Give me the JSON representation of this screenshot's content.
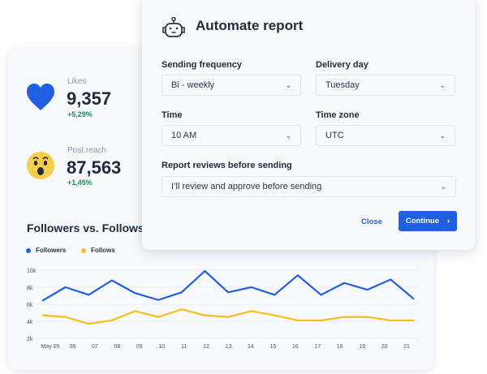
{
  "stats": [
    {
      "label": "Likes",
      "value": "9,357",
      "change": "+5,29%",
      "icon": "heart-icon"
    },
    {
      "label": "Post reach",
      "value": "87,563",
      "change": "+1,45%",
      "icon": "wow-emoji-icon"
    }
  ],
  "chart_data": {
    "type": "line",
    "title": "Followers vs. Follows",
    "categories": [
      "May 05",
      "06",
      "07",
      "08",
      "09",
      "10",
      "11",
      "12",
      "13",
      "14",
      "15",
      "16",
      "17",
      "18",
      "19",
      "20",
      "21"
    ],
    "series": [
      {
        "name": "Followers",
        "color": "#1f5fe0",
        "values": [
          6400,
          8000,
          7100,
          8800,
          7300,
          6500,
          7400,
          9900,
          7400,
          8000,
          7100,
          9400,
          7100,
          8500,
          7700,
          8900,
          6600
        ]
      },
      {
        "name": "Follows",
        "color": "#fbbd1e",
        "values": [
          4700,
          4500,
          3700,
          4100,
          5200,
          4500,
          5400,
          4700,
          4500,
          5200,
          4700,
          4100,
          4100,
          4500,
          4500,
          4100,
          4100
        ]
      }
    ],
    "yticks": [
      "10k",
      "8k",
      "6k",
      "4k",
      "2k"
    ],
    "ylim": [
      2000,
      10000
    ],
    "grid": true,
    "legend": "top-left"
  },
  "modal": {
    "title": "Automate report",
    "icon": "robot-icon",
    "fields": [
      {
        "label": "Sending frequency",
        "value": "Bi - weekly"
      },
      {
        "label": "Delivery day",
        "value": "Tuesday"
      },
      {
        "label": "Time",
        "value": "10 AM"
      },
      {
        "label": "Time zone",
        "value": "UTC"
      },
      {
        "label": "Report reviews before sending",
        "value": "I’ll review and approve before sending"
      }
    ],
    "close_label": "Close",
    "continue_label": "Continue"
  }
}
